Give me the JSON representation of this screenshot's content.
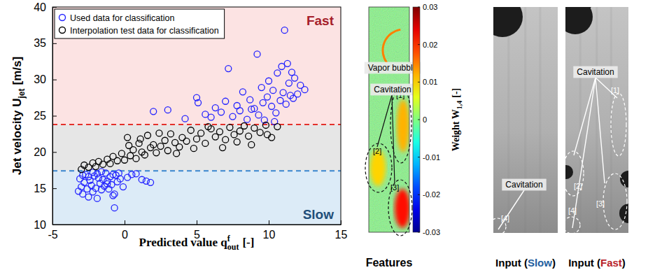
{
  "chart_data": {
    "type": "scatter",
    "xlabel": {
      "main": "Predicted value q",
      "sup": "f",
      "sub": "out",
      "unit": "[-]"
    },
    "ylabel": {
      "main": "Jet velocity U",
      "sub": "jet",
      "unit": "[m/s]"
    },
    "xlim": [
      -5,
      15
    ],
    "xticks": [
      -5,
      0,
      5,
      10,
      15
    ],
    "ylim": [
      10,
      40
    ],
    "yticks": [
      10,
      15,
      20,
      25,
      30,
      35,
      40
    ],
    "legend": "upper left",
    "series": [
      {
        "name": "Used data for classification",
        "color": "#2323ff",
        "marker": "circle-open",
        "x": [
          -3.2,
          -3.1,
          -3.0,
          -2.9,
          -2.8,
          -2.7,
          -2.6,
          -2.5,
          -2.4,
          -2.3,
          -2.2,
          -2.1,
          -2.0,
          -1.9,
          -1.8,
          -1.7,
          -1.6,
          -1.5,
          -1.4,
          -1.3,
          -1.2,
          -1.1,
          -1.0,
          -0.9,
          -0.8,
          -0.7,
          -0.6,
          -0.5,
          -0.3,
          -0.1,
          0.2,
          0.5,
          0.8,
          1.2,
          1.5,
          1.8,
          -2.9,
          -2.5,
          -2.2,
          -1.9,
          -1.6,
          -1.2,
          -0.8,
          -0.7,
          -0.4,
          2.0,
          3.0,
          4.2,
          5.0,
          5.1,
          5.6,
          6.0,
          6.3,
          6.7,
          7.0,
          7.2,
          7.5,
          7.8,
          8.0,
          8.2,
          8.5,
          8.7,
          9.0,
          9.2,
          9.3,
          9.5,
          9.7,
          9.9,
          10.0,
          10.2,
          10.3,
          10.5,
          10.6,
          10.8,
          10.9,
          11.0,
          11.1,
          11.2,
          11.3,
          11.4,
          11.5,
          11.6,
          11.8,
          12.0,
          12.2,
          12.5,
          8.8,
          9.6,
          10.4,
          11.7
        ],
        "values": [
          14.6,
          16.3,
          15.2,
          14.2,
          15.8,
          16.9,
          14.9,
          13.8,
          16.1,
          15.4,
          14.5,
          16.7,
          15.0,
          13.6,
          16.4,
          15.7,
          14.8,
          16.2,
          15.3,
          17.1,
          16.0,
          14.9,
          16.6,
          15.5,
          14.0,
          12.3,
          16.8,
          15.9,
          16.3,
          15.2,
          16.5,
          16.9,
          17.0,
          16.2,
          16.0,
          15.8,
          16.8,
          16.6,
          17.2,
          17.0,
          17.3,
          15.6,
          16.9,
          14.2,
          17.1,
          25.6,
          25.8,
          24.6,
          27.5,
          26.8,
          25.2,
          24.8,
          26.1,
          25.5,
          27.0,
          31.5,
          24.9,
          26.4,
          25.7,
          28.3,
          24.5,
          27.2,
          26.0,
          33.5,
          25.1,
          28.9,
          24.4,
          27.6,
          29.8,
          26.3,
          28.5,
          25.4,
          30.9,
          27.1,
          31.8,
          28.2,
          36.8,
          26.6,
          32.2,
          29.5,
          27.8,
          31.0,
          30.2,
          28.0,
          29.2,
          28.6,
          25.9,
          26.8,
          24.2,
          27.4
        ]
      },
      {
        "name": "Interpolation test data for classification",
        "color": "#000000",
        "marker": "circle-open",
        "x": [
          -3.0,
          -2.8,
          -2.5,
          -2.2,
          -2.0,
          -1.8,
          -1.5,
          -1.2,
          -1.0,
          -0.8,
          -0.5,
          -0.2,
          0.0,
          0.2,
          0.4,
          0.6,
          0.8,
          1.0,
          1.2,
          1.4,
          1.6,
          1.8,
          2.0,
          2.2,
          2.5,
          2.8,
          3.0,
          3.2,
          3.5,
          3.8,
          4.0,
          4.3,
          4.6,
          5.0,
          5.3,
          5.6,
          6.0,
          6.3,
          6.6,
          7.0,
          7.3,
          7.6,
          8.0,
          8.3,
          8.6,
          9.0,
          9.4,
          9.8,
          10.2,
          10.6,
          0.3,
          1.1,
          2.4,
          3.6,
          4.8,
          5.8,
          6.8,
          7.8,
          8.8,
          9.9
        ],
        "values": [
          17.6,
          18.2,
          17.9,
          18.5,
          18.0,
          18.7,
          18.3,
          19.0,
          18.4,
          19.4,
          18.8,
          19.8,
          18.9,
          22.0,
          19.5,
          20.3,
          19.1,
          21.2,
          20.0,
          19.6,
          22.3,
          20.6,
          21.0,
          19.9,
          20.8,
          21.6,
          20.2,
          22.5,
          21.3,
          20.7,
          22.0,
          21.5,
          23.0,
          21.8,
          22.6,
          21.2,
          23.2,
          22.1,
          22.8,
          21.7,
          23.4,
          22.4,
          22.9,
          23.6,
          22.2,
          23.3,
          22.7,
          23.7,
          22.0,
          23.5,
          20.9,
          21.8,
          22.6,
          19.8,
          20.5,
          23.5,
          20.6,
          21.4,
          21.0,
          22.4
        ]
      }
    ],
    "thresholds": [
      {
        "value": 23.8,
        "label": "Fast",
        "color": "#e4312b"
      },
      {
        "value": 17.4,
        "label": "Slow",
        "color": "#3a86d0"
      }
    ]
  },
  "features": {
    "caption": "Features",
    "colorbar": {
      "label": {
        "main": "Weight W",
        "sub": "1,4",
        "unit": "[-]"
      },
      "range": [
        -0.03,
        0.03
      ],
      "ticks": [
        0.03,
        0.02,
        0.01,
        0,
        -0.01,
        -0.02,
        -0.03
      ]
    },
    "background": 0,
    "vapor_bubble": {
      "label": "Vapor bubble",
      "value": 0.015
    },
    "annotation": "Cavitation",
    "regions": [
      {
        "label": "[1]",
        "value": 0.012
      },
      {
        "label": "[2]",
        "value": 0.01
      },
      {
        "label": "[3]",
        "value": 0.022
      }
    ]
  },
  "inputs": [
    {
      "caption": [
        "Input (",
        "Slow",
        ")"
      ],
      "color": "#1f5f9f",
      "annotation": "Cavitation",
      "markers": [
        "[4]"
      ]
    },
    {
      "caption": [
        "Input (",
        "Fast",
        ")"
      ],
      "color": "#b8232b",
      "annotation": "Cavitation",
      "markers": [
        "[1]",
        "[2]",
        "[3]",
        "[4]"
      ]
    }
  ]
}
